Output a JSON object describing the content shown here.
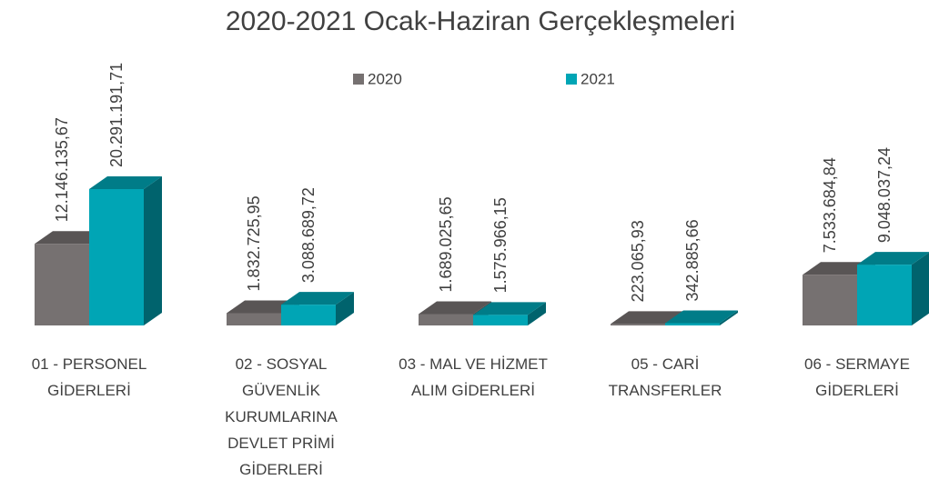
{
  "chart_data": {
    "type": "bar3d",
    "title": "2020-2021 Ocak-Haziran Gerçekleşmeleri",
    "categories": [
      "01 - PERSONEL GİDERLERİ",
      "02 - SOSYAL GÜVENLİK KURUMLARINA DEVLET PRİMİ GİDERLERİ",
      "03 - MAL VE HİZMET ALIM GİDERLERİ",
      "05 - CARİ TRANSFERLER",
      "06 - SERMAYE GİDERLERİ"
    ],
    "series": [
      {
        "name": "2020",
        "color": "#767171",
        "values": [
          12146135.67,
          1832725.95,
          1689025.65,
          223065.93,
          7533684.84
        ],
        "value_labels": [
          "12.146.135,67",
          "1.832.725,95",
          "1.689.025,65",
          "223.065,93",
          "7.533.684,84"
        ]
      },
      {
        "name": "2021",
        "color": "#00a5b5",
        "values": [
          20291191.71,
          3088689.72,
          1575966.15,
          342885.66,
          9048037.24
        ],
        "value_labels": [
          "20.291.191,71",
          "3.088.689,72",
          "1.575.966,15",
          "342.885,66",
          "9.048.037,24"
        ]
      }
    ],
    "legend": "top"
  }
}
